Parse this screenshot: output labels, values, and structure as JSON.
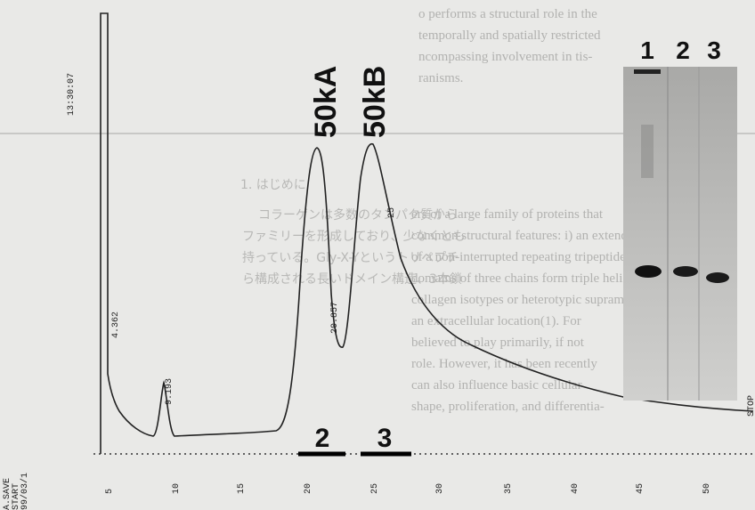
{
  "figure": {
    "background_text": [
      "o performs a structural role in the",
      "temporally and spatially restricted",
      "ncompassing involvement in tis-",
      "ranisms.",
      "ers of a large family of proteins that",
      "common structural features: i) an extended se-",
      "of a non-interrupted repeating tripeptide Gly-X-",
      "domains of three chains form triple helical mole-",
      "collagen isotypes or heterotypic supramol-",
      "an extracellular location(1). For",
      "believed to play primarily, if not",
      "role. However, it has been recently",
      "can also influence basic cellular",
      "shape, proliferation, and differentia-"
    ],
    "background_text_jp": [
      "1. はじめに",
      "コラーゲンは多数のタンパク質から",
      "ファミリーを形成しており、少なくとも",
      "持っている。Gly-X-Yというトリペプチ",
      "ら構成される長いドメイン構造、3本鎖"
    ],
    "gel_lane_labels": [
      "1",
      "2",
      "3"
    ],
    "peak_names": [
      "50kA",
      "50kB"
    ],
    "fraction_labels": [
      "2",
      "3"
    ],
    "peak_times": [
      "4.362",
      "9.193",
      "20.857",
      "25"
    ],
    "run_info": [
      "A.SAVE",
      "START",
      "99/03/1",
      "13:30:07"
    ],
    "time_ticks": [
      "5",
      "10",
      "15",
      "20",
      "25",
      "30",
      "35",
      "40",
      "45",
      "50"
    ],
    "stop_label": "STOP"
  }
}
